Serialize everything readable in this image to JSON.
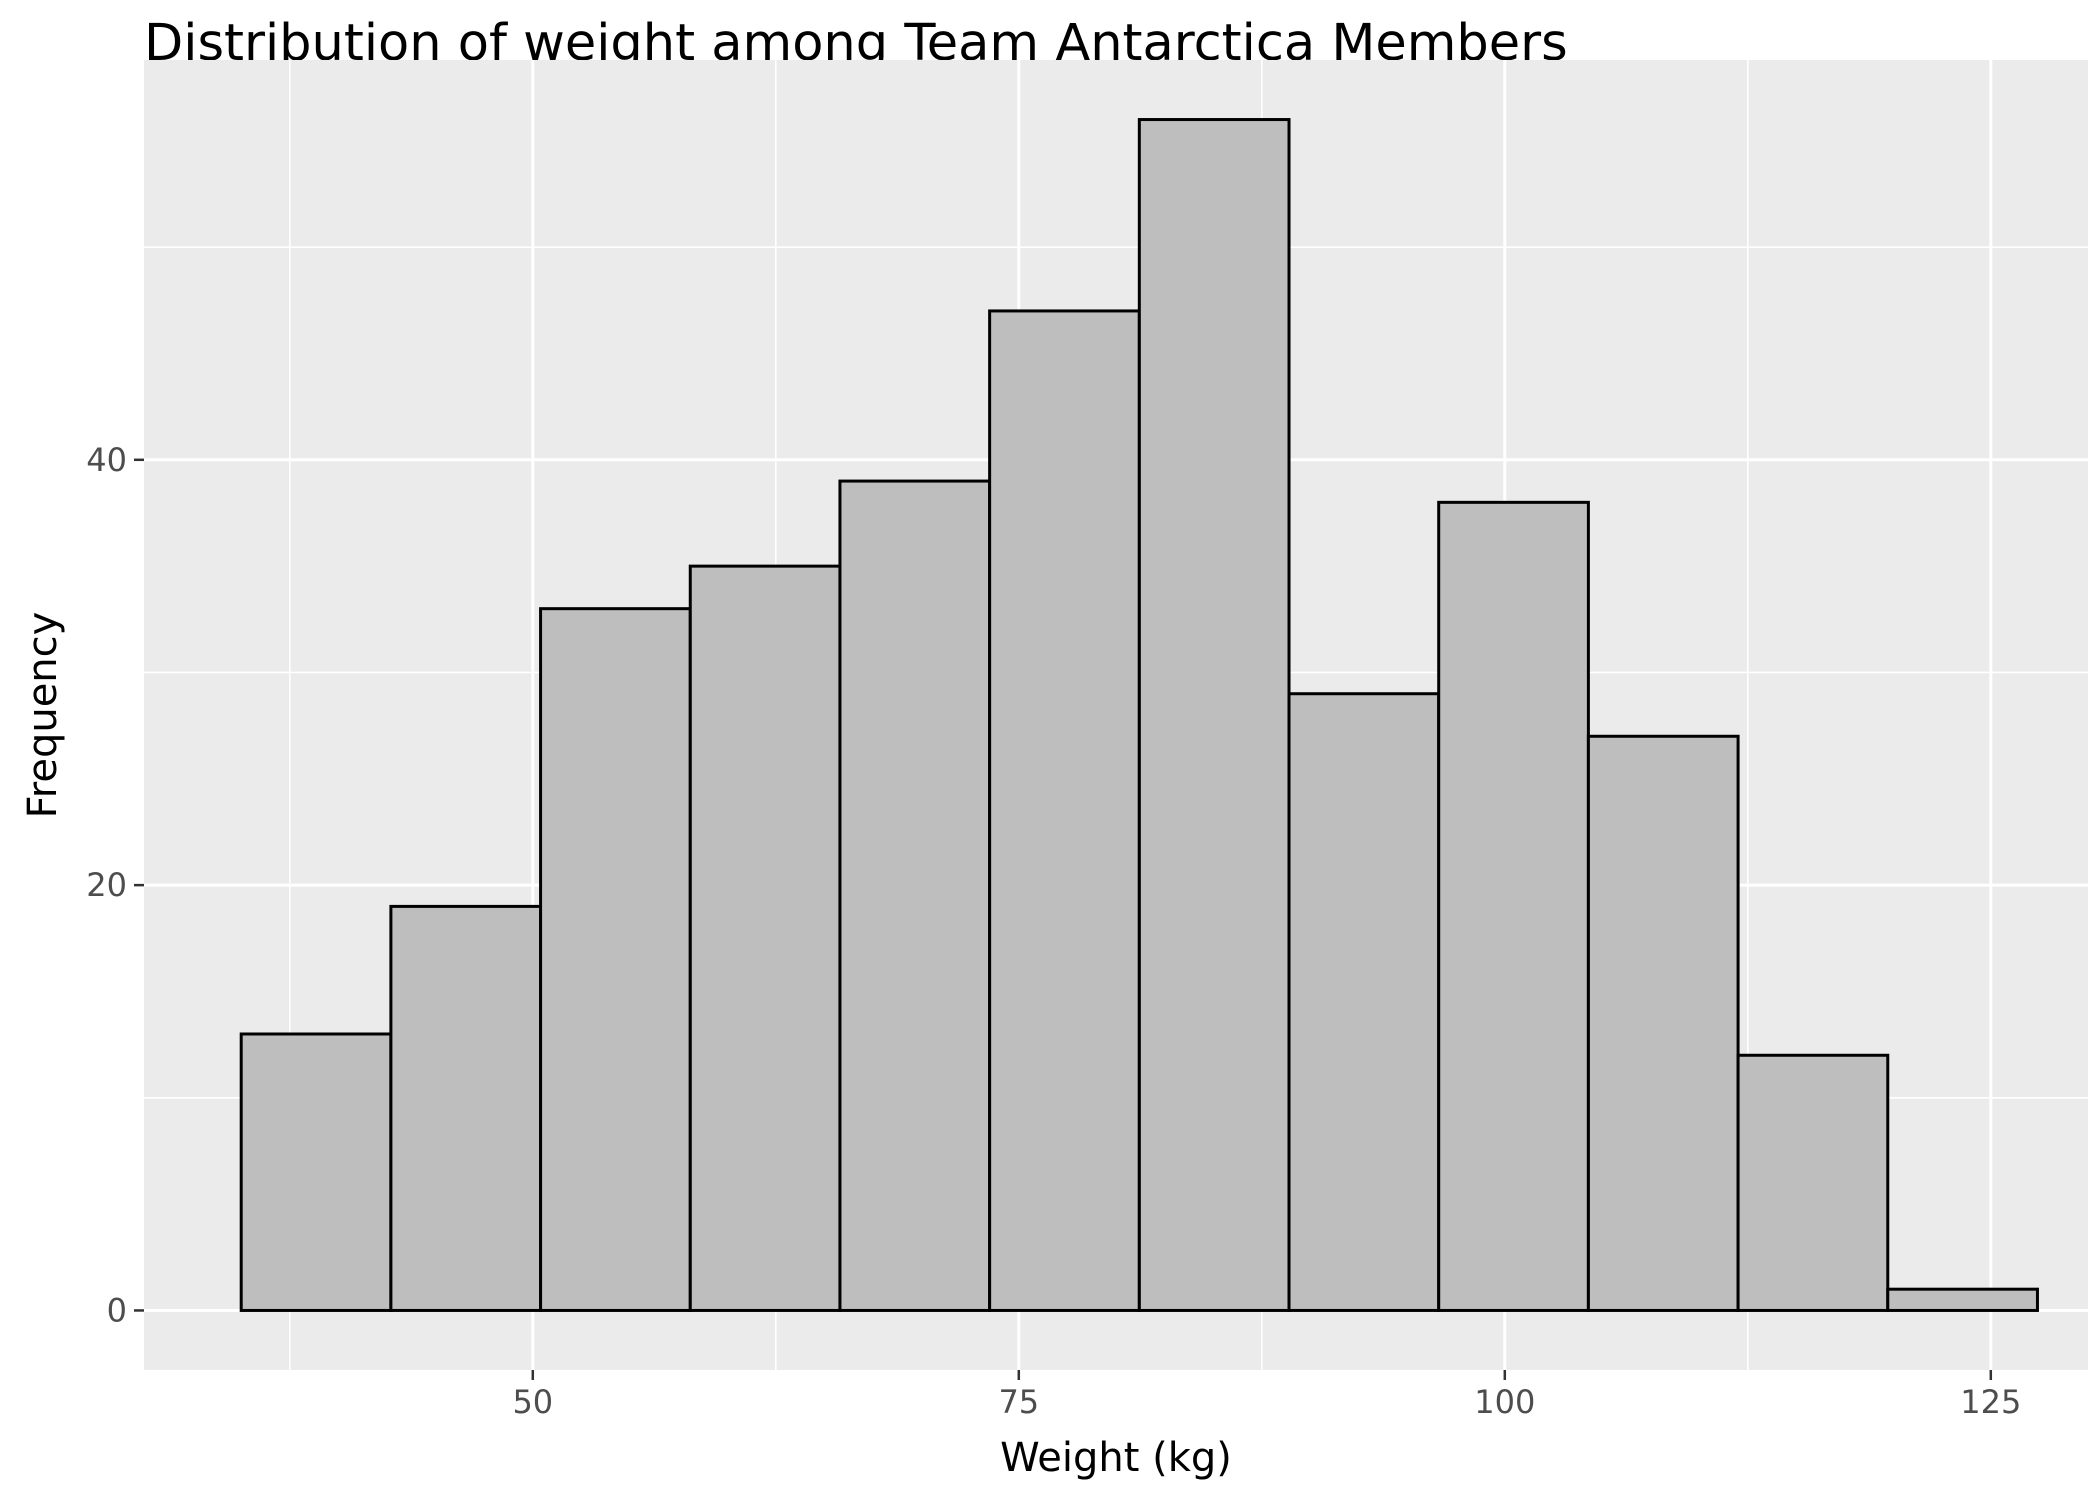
{
  "chart_data": {
    "type": "bar",
    "title": "Distribution of weight among Team Antarctica Members",
    "xlabel": "Weight (kg)",
    "ylabel": "Frequency",
    "bins": [
      {
        "x0": 35.0,
        "x1": 42.7,
        "count": 13
      },
      {
        "x0": 42.7,
        "x1": 50.4,
        "count": 19
      },
      {
        "x0": 50.4,
        "x1": 58.1,
        "count": 33
      },
      {
        "x0": 58.1,
        "x1": 65.8,
        "count": 35
      },
      {
        "x0": 65.8,
        "x1": 73.5,
        "count": 39
      },
      {
        "x0": 73.5,
        "x1": 81.2,
        "count": 47
      },
      {
        "x0": 81.2,
        "x1": 88.9,
        "count": 56
      },
      {
        "x0": 88.9,
        "x1": 96.6,
        "count": 29
      },
      {
        "x0": 96.6,
        "x1": 104.3,
        "count": 38
      },
      {
        "x0": 104.3,
        "x1": 112.0,
        "count": 27
      },
      {
        "x0": 112.0,
        "x1": 119.7,
        "count": 12
      },
      {
        "x0": 119.7,
        "x1": 127.4,
        "count": 1
      }
    ],
    "x_ticks": [
      50,
      75,
      100,
      125
    ],
    "y_ticks": [
      0,
      20,
      40
    ],
    "xlim": [
      30,
      130
    ],
    "ylim": [
      -2.8,
      58.8
    ],
    "grid": true,
    "colors": {
      "panel_background": "#ebebeb",
      "grid": "#ffffff",
      "bar_fill": "#bebebe",
      "bar_outline": "#000000"
    }
  }
}
